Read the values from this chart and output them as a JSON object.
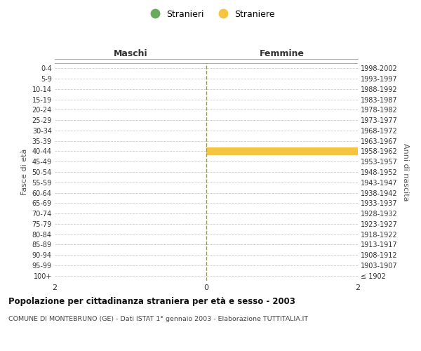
{
  "age_groups": [
    "100+",
    "95-99",
    "90-94",
    "85-89",
    "80-84",
    "75-79",
    "70-74",
    "65-69",
    "60-64",
    "55-59",
    "50-54",
    "45-49",
    "40-44",
    "35-39",
    "30-34",
    "25-29",
    "20-24",
    "15-19",
    "10-14",
    "5-9",
    "0-4"
  ],
  "birth_years": [
    "≤ 1902",
    "1903-1907",
    "1908-1912",
    "1913-1917",
    "1918-1922",
    "1923-1927",
    "1928-1932",
    "1933-1937",
    "1938-1942",
    "1943-1947",
    "1948-1952",
    "1953-1957",
    "1958-1962",
    "1963-1967",
    "1968-1972",
    "1973-1977",
    "1978-1982",
    "1983-1987",
    "1988-1992",
    "1993-1997",
    "1998-2002"
  ],
  "males": [
    0,
    0,
    0,
    0,
    0,
    0,
    0,
    0,
    0,
    0,
    0,
    0,
    0,
    0,
    0,
    0,
    0,
    0,
    0,
    0,
    0
  ],
  "females": [
    0,
    0,
    0,
    0,
    0,
    0,
    0,
    0,
    0,
    0,
    0,
    0,
    2,
    0,
    0,
    0,
    0,
    0,
    0,
    0,
    0
  ],
  "male_color": "#6aaa5e",
  "female_color": "#f5c542",
  "background_color": "#ffffff",
  "grid_color": "#cccccc",
  "title": "Popolazione per cittadinanza straniera per età e sesso - 2003",
  "subtitle": "COMUNE DI MONTEBRUNO (GE) - Dati ISTAT 1° gennaio 2003 - Elaborazione TUTTITALIA.IT",
  "xlabel_left": "Maschi",
  "xlabel_right": "Femmine",
  "ylabel_left": "Fasce di età",
  "ylabel_right": "Anni di nascita",
  "legend_male": "Stranieri",
  "legend_female": "Straniere",
  "xlim": 2,
  "center_line_color": "#999966"
}
